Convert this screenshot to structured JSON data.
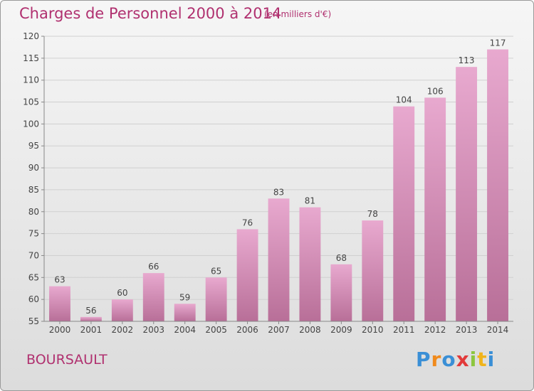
{
  "title": "Charges de Personnel 2000 à 2014",
  "unit_note": "(en milliers d'€)",
  "location": "BOURSAULT",
  "brand": "Proxiti",
  "colors": {
    "title": "#b0306f",
    "bar_top": "#e8a9cf",
    "bar_bottom": "#b86f98",
    "grid": "#d0d0d0"
  },
  "chart_data": {
    "type": "bar",
    "categories": [
      "2000",
      "2001",
      "2002",
      "2003",
      "2004",
      "2005",
      "2006",
      "2007",
      "2008",
      "2009",
      "2010",
      "2011",
      "2012",
      "2013",
      "2014"
    ],
    "values": [
      63,
      56,
      60,
      66,
      59,
      65,
      76,
      83,
      81,
      68,
      78,
      104,
      106,
      113,
      117
    ],
    "ylim": [
      55,
      120
    ],
    "yticks": [
      55,
      60,
      65,
      70,
      75,
      80,
      85,
      90,
      95,
      100,
      105,
      110,
      115,
      120
    ],
    "grid": true,
    "data_labels": true
  }
}
